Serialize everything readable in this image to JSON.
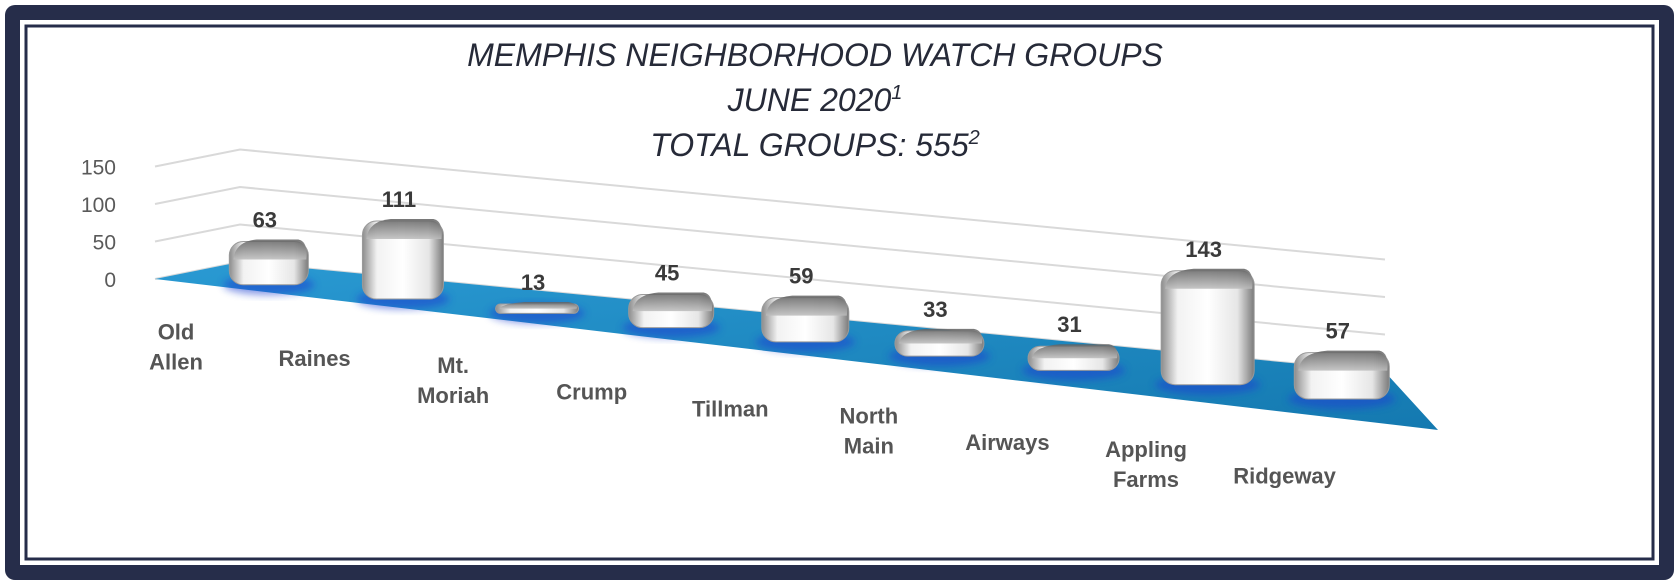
{
  "chart_data": {
    "type": "bar",
    "title_lines": [
      {
        "text": "MEMPHIS NEIGHBORHOOD WATCH GROUPS",
        "sup": ""
      },
      {
        "text": "JUNE 2020",
        "sup": "1"
      },
      {
        "text": "TOTAL GROUPS:  555",
        "sup": "2"
      }
    ],
    "categories": [
      [
        "Old",
        "Allen"
      ],
      [
        "Raines"
      ],
      [
        "Mt.",
        "Moriah"
      ],
      [
        "Crump"
      ],
      [
        "Tillman"
      ],
      [
        "North",
        "Main"
      ],
      [
        "Airways"
      ],
      [
        "Appling",
        "Farms"
      ],
      [
        "Ridgeway"
      ]
    ],
    "values": [
      63,
      111,
      13,
      45,
      59,
      33,
      31,
      143,
      57
    ],
    "yticks": [
      0,
      50,
      100,
      150
    ],
    "ylim": [
      0,
      150
    ],
    "xlabel": "",
    "ylabel": "",
    "grid": true,
    "legend": "none",
    "floor_color": "#1a8cc7",
    "bar_color": "#d9d9d9",
    "frame_color": "#262d4a"
  }
}
